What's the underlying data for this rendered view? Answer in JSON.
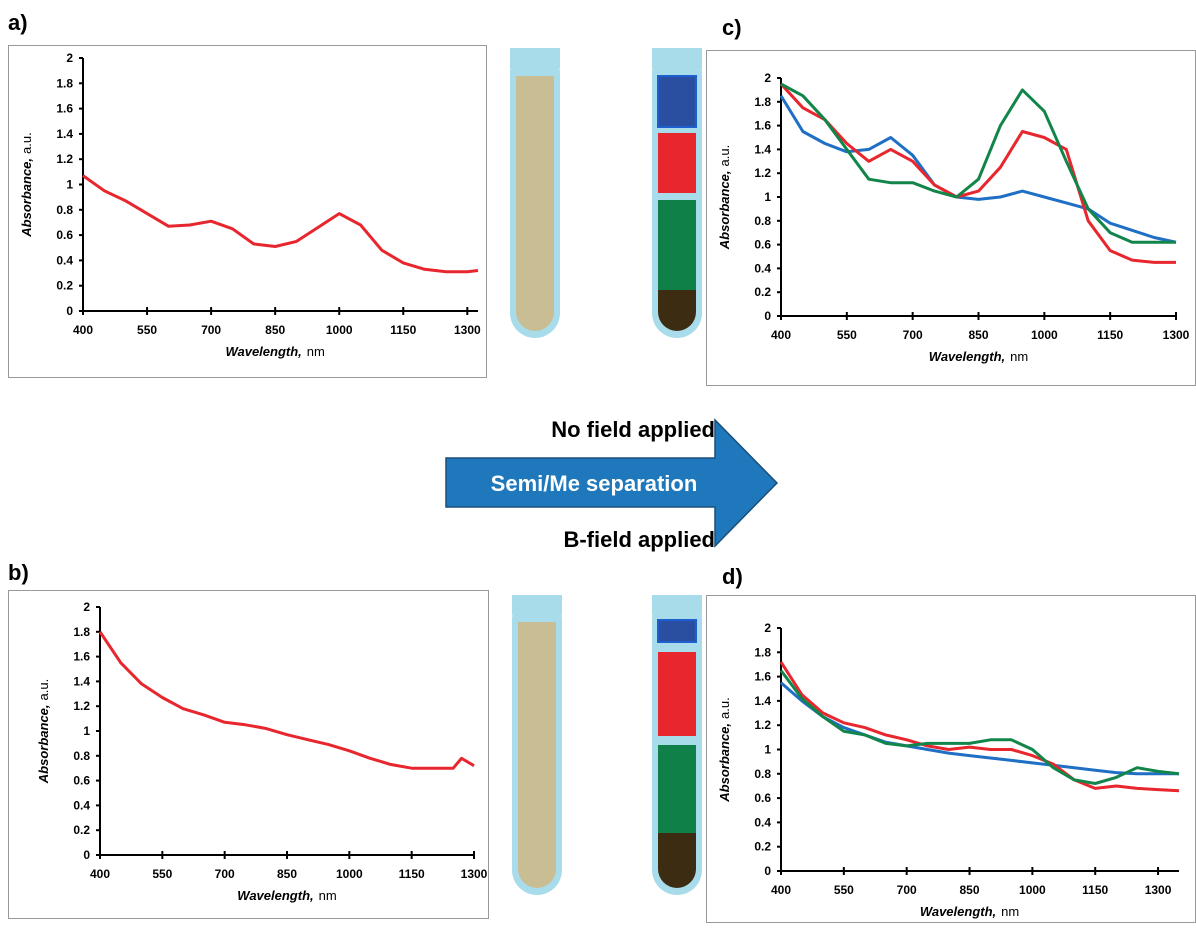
{
  "chart_data": [
    {
      "type": "line",
      "panel": "a)",
      "x_label": "Wavelength,",
      "x_unit": "nm",
      "y_label": "Absorbance,",
      "y_unit": "a.u.",
      "x": [
        400,
        450,
        500,
        550,
        600,
        650,
        700,
        750,
        800,
        850,
        900,
        950,
        1000,
        1050,
        1100,
        1150,
        1200,
        1250,
        1300,
        1325
      ],
      "series": [
        {
          "color": "#e8262d",
          "values": [
            1.07,
            0.95,
            0.87,
            0.77,
            0.67,
            0.68,
            0.71,
            0.65,
            0.53,
            0.51,
            0.55,
            0.66,
            0.77,
            0.68,
            0.48,
            0.38,
            0.33,
            0.31,
            0.31,
            0.32
          ]
        }
      ],
      "xlim": [
        400,
        1325
      ],
      "ylim": [
        0,
        2
      ],
      "xticks": [
        400,
        550,
        700,
        850,
        1000,
        1150,
        1300
      ],
      "yticks": [
        0,
        0.2,
        0.4,
        0.6,
        0.8,
        1,
        1.2,
        1.4,
        1.6,
        1.8,
        2
      ]
    },
    {
      "type": "line",
      "panel": "c)",
      "x_label": "Wavelength,",
      "x_unit": "nm",
      "y_label": "Absorbance,",
      "y_unit": "a.u.",
      "x": [
        400,
        450,
        500,
        550,
        600,
        650,
        700,
        750,
        800,
        850,
        900,
        950,
        1000,
        1050,
        1100,
        1150,
        1200,
        1250,
        1300
      ],
      "series": [
        {
          "color": "#1f6fc5",
          "values": [
            1.85,
            1.55,
            1.45,
            1.38,
            1.4,
            1.5,
            1.35,
            1.1,
            1.0,
            0.98,
            1.0,
            1.05,
            1.0,
            0.95,
            0.9,
            0.78,
            0.72,
            0.66,
            0.62
          ]
        },
        {
          "color": "#e8262d",
          "values": [
            1.95,
            1.75,
            1.65,
            1.45,
            1.3,
            1.4,
            1.3,
            1.1,
            1.0,
            1.05,
            1.25,
            1.55,
            1.5,
            1.4,
            0.8,
            0.55,
            0.47,
            0.45,
            0.45
          ]
        },
        {
          "color": "#12854a",
          "values": [
            1.95,
            1.85,
            1.65,
            1.4,
            1.15,
            1.12,
            1.12,
            1.05,
            1.0,
            1.15,
            1.6,
            1.9,
            1.72,
            1.3,
            0.9,
            0.7,
            0.62,
            0.62,
            0.62
          ]
        }
      ],
      "xlim": [
        400,
        1300
      ],
      "ylim": [
        0,
        2
      ],
      "xticks": [
        400,
        550,
        700,
        850,
        1000,
        1150,
        1300
      ],
      "yticks": [
        0,
        0.2,
        0.4,
        0.6,
        0.8,
        1,
        1.2,
        1.4,
        1.6,
        1.8,
        2
      ]
    },
    {
      "type": "line",
      "panel": "b)",
      "x_label": "Wavelength,",
      "x_unit": "nm",
      "y_label": "Absorbance,",
      "y_unit": "a.u.",
      "x": [
        400,
        450,
        500,
        550,
        600,
        650,
        700,
        750,
        800,
        850,
        900,
        950,
        1000,
        1050,
        1100,
        1150,
        1200,
        1250,
        1270,
        1300
      ],
      "series": [
        {
          "color": "#e8262d",
          "values": [
            1.8,
            1.55,
            1.38,
            1.27,
            1.18,
            1.13,
            1.07,
            1.05,
            1.02,
            0.97,
            0.93,
            0.89,
            0.84,
            0.78,
            0.73,
            0.7,
            0.7,
            0.7,
            0.78,
            0.72
          ]
        }
      ],
      "xlim": [
        400,
        1300
      ],
      "ylim": [
        0,
        2
      ],
      "xticks": [
        400,
        550,
        700,
        850,
        1000,
        1150,
        1300
      ],
      "yticks": [
        0,
        0.2,
        0.4,
        0.6,
        0.8,
        1,
        1.2,
        1.4,
        1.6,
        1.8,
        2
      ]
    },
    {
      "type": "line",
      "panel": "d)",
      "x_label": "Wavelength,",
      "x_unit": "nm",
      "y_label": "Absorbance,",
      "y_unit": "a.u.",
      "x": [
        400,
        450,
        500,
        550,
        600,
        650,
        700,
        750,
        800,
        850,
        900,
        950,
        1000,
        1050,
        1100,
        1150,
        1200,
        1250,
        1300,
        1350
      ],
      "series": [
        {
          "color": "#1f6fc5",
          "values": [
            1.55,
            1.4,
            1.27,
            1.18,
            1.12,
            1.06,
            1.03,
            1.0,
            0.97,
            0.95,
            0.93,
            0.91,
            0.89,
            0.87,
            0.85,
            0.83,
            0.81,
            0.8,
            0.8,
            0.8
          ]
        },
        {
          "color": "#e8262d",
          "values": [
            1.72,
            1.45,
            1.3,
            1.22,
            1.18,
            1.12,
            1.08,
            1.03,
            1.0,
            1.02,
            1.0,
            1.0,
            0.95,
            0.88,
            0.75,
            0.68,
            0.7,
            0.68,
            0.67,
            0.66
          ]
        },
        {
          "color": "#12854a",
          "values": [
            1.65,
            1.42,
            1.27,
            1.15,
            1.12,
            1.05,
            1.03,
            1.05,
            1.05,
            1.05,
            1.08,
            1.08,
            1.0,
            0.85,
            0.75,
            0.72,
            0.77,
            0.85,
            0.82,
            0.8
          ]
        }
      ],
      "xlim": [
        400,
        1350
      ],
      "ylim": [
        0,
        2
      ],
      "xticks": [
        400,
        550,
        700,
        850,
        1000,
        1150,
        1300
      ],
      "yticks": [
        0,
        0.2,
        0.4,
        0.6,
        0.8,
        1,
        1.2,
        1.4,
        1.6,
        1.8,
        2
      ]
    }
  ],
  "arrow": {
    "top": "No field applied",
    "middle": "Semi/Me separation",
    "bottom": "B-field applied"
  }
}
